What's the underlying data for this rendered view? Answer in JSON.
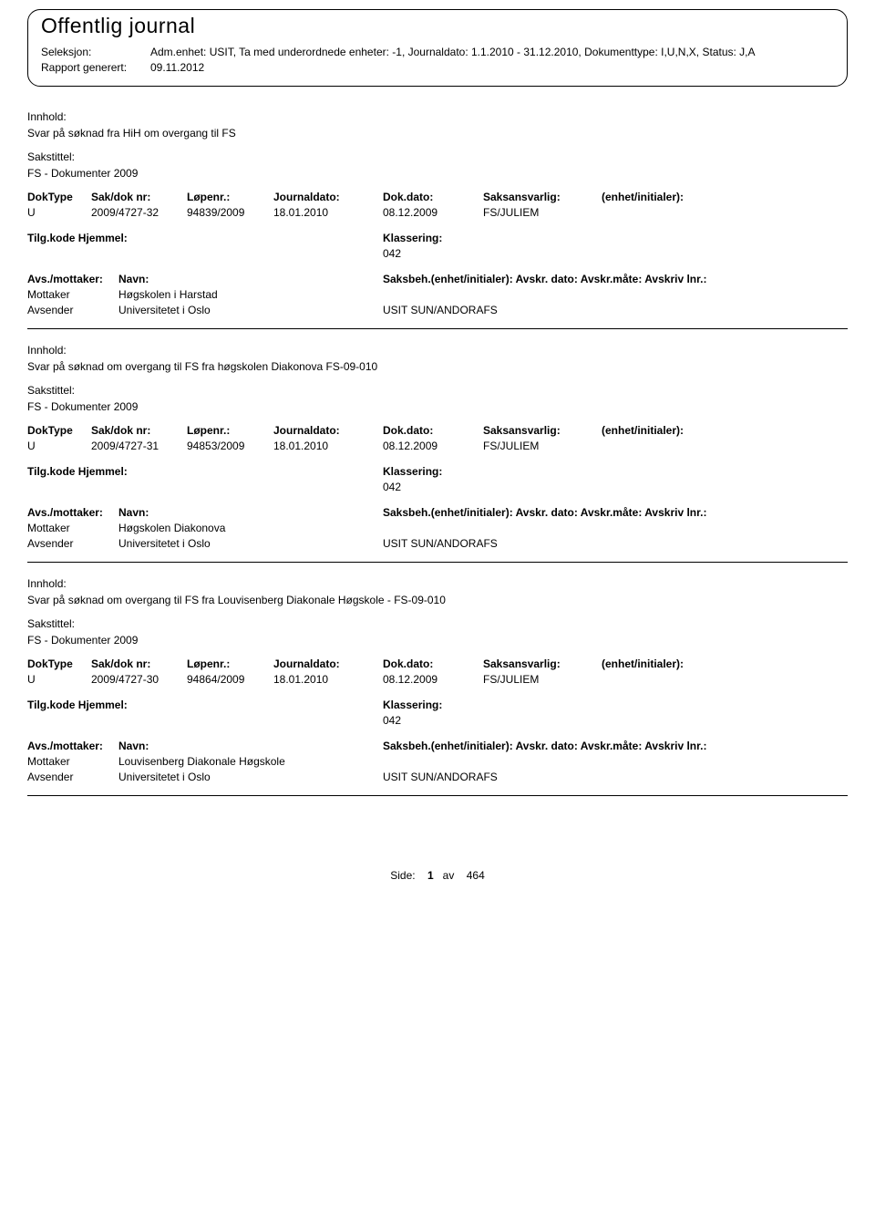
{
  "header": {
    "title": "Offentlig journal",
    "seleksjon_label": "Seleksjon:",
    "seleksjon_value": "Adm.enhet: USIT, Ta med underordnede enheter: -1, Journaldato: 1.1.2010 - 31.12.2010, Dokumenttype: I,U,N,X, Status: J,A",
    "rapport_label": "Rapport generert:",
    "rapport_value": "09.11.2012"
  },
  "labels": {
    "innhold": "Innhold:",
    "sakstittel": "Sakstittel:",
    "doktype": "DokType",
    "sakdoknr": "Sak/dok nr:",
    "lopenr": "Løpenr.:",
    "journaldato": "Journaldato:",
    "dokdato": "Dok.dato:",
    "saksansvarlig": "Saksansvarlig:",
    "enhet_initialer": "(enhet/initialer):",
    "tilgkode": "Tilg.kode",
    "hjemmel": "Hjemmel:",
    "klassering": "Klassering:",
    "avs_mottaker": "Avs./mottaker:",
    "navn": "Navn:",
    "saksbeh": "Saksbeh.(enhet/initialer):",
    "avskr_dato": "Avskr. dato:",
    "avskr_mate": "Avskr.måte:",
    "avskriv_lnr": "Avskriv lnr.:",
    "mottaker": "Mottaker",
    "avsender": "Avsender"
  },
  "entries": [
    {
      "innhold": "Svar på søknad fra HiH om overgang til FS",
      "sakstittel": "FS - Dokumenter 2009",
      "doktype": "U",
      "sakdoknr": "2009/4727-32",
      "lopenr": "94839/2009",
      "journaldato": "18.01.2010",
      "dokdato": "08.12.2009",
      "saksansvarlig": "FS/JULIEM",
      "klassering": "042",
      "mottaker_navn": "Høgskolen i Harstad",
      "avsender_navn": "Universitetet i Oslo",
      "saksbeh_right": "USIT SUN/ANDORAFS"
    },
    {
      "innhold": "Svar på søknad om overgang til FS fra høgskolen Diakonova FS-09-010",
      "sakstittel": "FS - Dokumenter 2009",
      "doktype": "U",
      "sakdoknr": "2009/4727-31",
      "lopenr": "94853/2009",
      "journaldato": "18.01.2010",
      "dokdato": "08.12.2009",
      "saksansvarlig": "FS/JULIEM",
      "klassering": "042",
      "mottaker_navn": "Høgskolen Diakonova",
      "avsender_navn": "Universitetet i Oslo",
      "saksbeh_right": "USIT SUN/ANDORAFS"
    },
    {
      "innhold": "Svar på søknad om overgang til FS fra Louvisenberg Diakonale Høgskole - FS-09-010",
      "sakstittel": "FS - Dokumenter 2009",
      "doktype": "U",
      "sakdoknr": "2009/4727-30",
      "lopenr": "94864/2009",
      "journaldato": "18.01.2010",
      "dokdato": "08.12.2009",
      "saksansvarlig": "FS/JULIEM",
      "klassering": "042",
      "mottaker_navn": "Louvisenberg Diakonale Høgskole",
      "avsender_navn": "Universitetet i Oslo",
      "saksbeh_right": "USIT SUN/ANDORAFS"
    }
  ],
  "footer": {
    "side_label": "Side:",
    "page": "1",
    "av": "av",
    "total": "464"
  }
}
